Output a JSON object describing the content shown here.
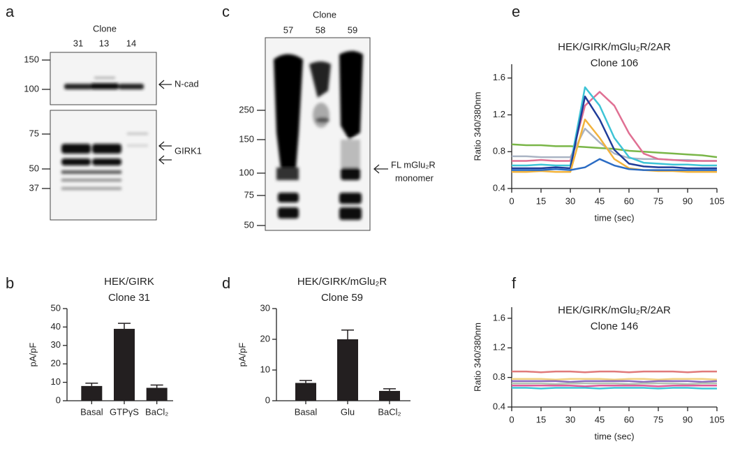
{
  "blots": {
    "a": {
      "letter": "a",
      "clone_label": "Clone",
      "lanes": [
        "31",
        "13",
        "14"
      ],
      "markers_top": [
        150,
        100
      ],
      "markers_bottom": [
        75,
        50,
        37
      ],
      "labels": [
        "N-cad",
        "GIRK1"
      ]
    },
    "c": {
      "letter": "c",
      "clone_label": "Clone",
      "lanes": [
        "57",
        "58",
        "59"
      ],
      "markers": [
        250,
        150,
        100,
        75,
        50
      ],
      "label": [
        "FL mGlu₂R",
        "monomer"
      ]
    }
  },
  "chart_data": [
    {
      "type": "bar",
      "panel": "b",
      "title": "HEK/GIRK",
      "subtitle": "Clone 31",
      "ylabel": "pA/pF",
      "categories": [
        "Basal",
        "GTPγS",
        "BaCl₂"
      ],
      "values": [
        8,
        39,
        7
      ],
      "errors": [
        1.5,
        3,
        1.5
      ],
      "color": "#231f20",
      "ylim": [
        0,
        50
      ],
      "yticks": [
        0,
        10,
        20,
        30,
        40,
        50
      ]
    },
    {
      "type": "bar",
      "panel": "d",
      "title": "HEK/GIRK/mGlu₂R",
      "subtitle": "Clone 59",
      "ylabel": "pA/pF",
      "categories": [
        "Basal",
        "Glu",
        "BaCl₂"
      ],
      "values": [
        5.8,
        20,
        3.2
      ],
      "errors": [
        0.8,
        3,
        0.7
      ],
      "color": "#231f20",
      "ylim": [
        0,
        30
      ],
      "yticks": [
        0,
        10,
        20,
        30
      ]
    },
    {
      "type": "line",
      "panel": "e",
      "title": "HEK/GIRK/mGlu₂R/2AR",
      "subtitle": "Clone 106",
      "ylabel": "Ratio 340/380nm",
      "xlabel": "time (sec)",
      "x": [
        0,
        7.5,
        15,
        22.5,
        30,
        37.5,
        45,
        52.5,
        60,
        67.5,
        75,
        82.5,
        90,
        97.5,
        105
      ],
      "xlim": [
        0,
        105
      ],
      "xticks": [
        0,
        15,
        30,
        45,
        60,
        75,
        90,
        105
      ],
      "ylim": [
        0.4,
        1.75
      ],
      "yticks": [
        0.4,
        0.8,
        1.2,
        1.6
      ],
      "series": [
        {
          "color": "#7ab648",
          "values": [
            0.88,
            0.87,
            0.87,
            0.86,
            0.86,
            0.85,
            0.84,
            0.83,
            0.81,
            0.8,
            0.79,
            0.78,
            0.77,
            0.76,
            0.74
          ]
        },
        {
          "color": "#aab4c4",
          "values": [
            0.75,
            0.75,
            0.74,
            0.74,
            0.74,
            1.05,
            0.9,
            0.78,
            0.73,
            0.72,
            0.72,
            0.71,
            0.71,
            0.7,
            0.7
          ]
        },
        {
          "color": "#e07093",
          "values": [
            0.7,
            0.7,
            0.71,
            0.7,
            0.7,
            1.3,
            1.45,
            1.3,
            1.0,
            0.78,
            0.72,
            0.71,
            0.7,
            0.7,
            0.7
          ]
        },
        {
          "color": "#3ec4d6",
          "values": [
            0.65,
            0.65,
            0.66,
            0.65,
            0.65,
            1.5,
            1.3,
            0.95,
            0.74,
            0.68,
            0.67,
            0.66,
            0.66,
            0.65,
            0.65
          ]
        },
        {
          "color": "#1f3c99",
          "values": [
            0.62,
            0.62,
            0.62,
            0.63,
            0.62,
            1.4,
            1.15,
            0.82,
            0.67,
            0.64,
            0.63,
            0.63,
            0.62,
            0.62,
            0.62
          ]
        },
        {
          "color": "#f2b33d",
          "values": [
            0.58,
            0.58,
            0.59,
            0.58,
            0.58,
            1.15,
            0.95,
            0.72,
            0.62,
            0.6,
            0.59,
            0.59,
            0.58,
            0.58,
            0.58
          ]
        },
        {
          "color": "#2b6cc4",
          "values": [
            0.6,
            0.6,
            0.6,
            0.61,
            0.6,
            0.63,
            0.72,
            0.65,
            0.61,
            0.6,
            0.6,
            0.6,
            0.6,
            0.6,
            0.6
          ]
        }
      ]
    },
    {
      "type": "line",
      "panel": "f",
      "title": "HEK/GIRK/mGlu₂R/2AR",
      "subtitle": "Clone 146",
      "ylabel": "Ratio 340/380nm",
      "xlabel": "time (sec)",
      "x": [
        0,
        7.5,
        15,
        22.5,
        30,
        37.5,
        45,
        52.5,
        60,
        67.5,
        75,
        82.5,
        90,
        97.5,
        105
      ],
      "xlim": [
        0,
        105
      ],
      "xticks": [
        0,
        15,
        30,
        45,
        60,
        75,
        90,
        105
      ],
      "ylim": [
        0.4,
        1.75
      ],
      "yticks": [
        0.4,
        0.8,
        1.2,
        1.6
      ],
      "series": [
        {
          "color": "#e07a7a",
          "values": [
            0.88,
            0.88,
            0.87,
            0.88,
            0.88,
            0.87,
            0.88,
            0.88,
            0.87,
            0.88,
            0.88,
            0.88,
            0.87,
            0.88,
            0.88
          ]
        },
        {
          "color": "#f0d080",
          "values": [
            0.78,
            0.78,
            0.78,
            0.77,
            0.78,
            0.78,
            0.78,
            0.77,
            0.78,
            0.78,
            0.77,
            0.78,
            0.78,
            0.78,
            0.77
          ]
        },
        {
          "color": "#8a6bbf",
          "values": [
            0.75,
            0.75,
            0.75,
            0.75,
            0.74,
            0.75,
            0.75,
            0.75,
            0.75,
            0.74,
            0.75,
            0.75,
            0.75,
            0.74,
            0.75
          ]
        },
        {
          "color": "#b0c4b0",
          "values": [
            0.72,
            0.72,
            0.72,
            0.71,
            0.72,
            0.72,
            0.72,
            0.72,
            0.71,
            0.72,
            0.72,
            0.72,
            0.71,
            0.72,
            0.72
          ]
        },
        {
          "color": "#e05a9a",
          "values": [
            0.69,
            0.69,
            0.69,
            0.69,
            0.69,
            0.68,
            0.69,
            0.69,
            0.69,
            0.69,
            0.68,
            0.69,
            0.69,
            0.69,
            0.69
          ]
        },
        {
          "color": "#3ec4d6",
          "values": [
            0.66,
            0.66,
            0.65,
            0.66,
            0.66,
            0.66,
            0.65,
            0.66,
            0.66,
            0.66,
            0.65,
            0.66,
            0.66,
            0.65,
            0.65
          ]
        }
      ]
    }
  ]
}
